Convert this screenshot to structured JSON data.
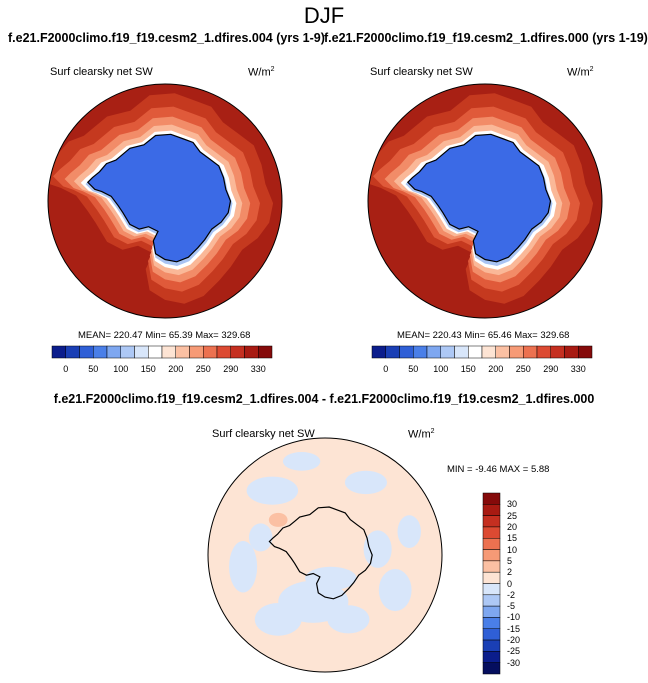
{
  "page": {
    "title": "DJF",
    "left_run_title": "f.e21.F2000climo.f19_f19.cesm2_1.dfires.004 (yrs 1-9)",
    "right_run_title": "f.e21.F2000climo.f19_f19.cesm2_1.dfires.000 (yrs 1-19)",
    "diff_title": "f.e21.F2000climo.f19_f19.cesm2_1.dfires.004 - f.e21.F2000climo.f19_f19.cesm2_1.dfires.000"
  },
  "chart_data": [
    {
      "type": "heatmap",
      "projection": "south-polar-stereographic",
      "variable": "Surf clearsky net SW",
      "units_base": "W/m",
      "units_exp": "2",
      "stats_text": "MEAN= 220.47  Min=  65.39  Max= 329.68",
      "mean": 220.47,
      "min": 65.39,
      "max": 329.68,
      "colorbar_levels": [
        "0",
        "50",
        "100",
        "150",
        "200",
        "250",
        "290",
        "330"
      ],
      "colorbar_colors": [
        "#0b1d8c",
        "#1a3fb5",
        "#2f5fd6",
        "#4a7fe8",
        "#7ea7f0",
        "#adc8f5",
        "#d8e6fa",
        "#ffffff",
        "#fde4d4",
        "#fbc0a3",
        "#f69a76",
        "#ec7150",
        "#dc4a32",
        "#c52f20",
        "#a81a12",
        "#850a0a"
      ],
      "field_zones": [
        "#a82014",
        "#c5391f",
        "#e05a3a",
        "#f28c68",
        "#fab898",
        "#ffffff",
        "#a9c4f4",
        "#3b6ae6"
      ]
    },
    {
      "type": "heatmap",
      "projection": "south-polar-stereographic",
      "variable": "Surf clearsky net SW",
      "units_base": "W/m",
      "units_exp": "2",
      "stats_text": "MEAN= 220.43  Min=  65.46  Max= 329.68",
      "mean": 220.43,
      "min": 65.46,
      "max": 329.68,
      "colorbar_levels": [
        "0",
        "50",
        "100",
        "150",
        "200",
        "250",
        "290",
        "330"
      ],
      "colorbar_colors": [
        "#0b1d8c",
        "#1a3fb5",
        "#2f5fd6",
        "#4a7fe8",
        "#7ea7f0",
        "#adc8f5",
        "#d8e6fa",
        "#ffffff",
        "#fde4d4",
        "#fbc0a3",
        "#f69a76",
        "#ec7150",
        "#dc4a32",
        "#c52f20",
        "#a81a12",
        "#850a0a"
      ],
      "field_zones": [
        "#a82014",
        "#c5391f",
        "#e05a3a",
        "#f28c68",
        "#fab898",
        "#ffffff",
        "#a9c4f4",
        "#3b6ae6"
      ]
    },
    {
      "type": "heatmap",
      "projection": "south-polar-stereographic",
      "variable": "Surf clearsky net SW",
      "units_base": "W/m",
      "units_exp": "2",
      "stats_text": "MIN =  -9.46 MAX =  5.88",
      "min": -9.46,
      "max": 5.88,
      "colorbar_levels": [
        "30",
        "25",
        "20",
        "15",
        "10",
        "5",
        "2",
        "0",
        "-2",
        "-5",
        "-10",
        "-15",
        "-20",
        "-25",
        "-30"
      ],
      "colorbar_colors": [
        "#850a0a",
        "#a81a12",
        "#c52f20",
        "#dc4a32",
        "#ec7150",
        "#f69a76",
        "#fbc0a3",
        "#fde4d4",
        "#d8e6fa",
        "#adc8f5",
        "#7ea7f0",
        "#4a7fe8",
        "#2f5fd6",
        "#1a3fb5",
        "#0b1d8c",
        "#050e5e"
      ],
      "field_base": "#fde4d4",
      "field_secondary": "#d8e6fa",
      "field_highlight": "#fbc0a3"
    }
  ]
}
